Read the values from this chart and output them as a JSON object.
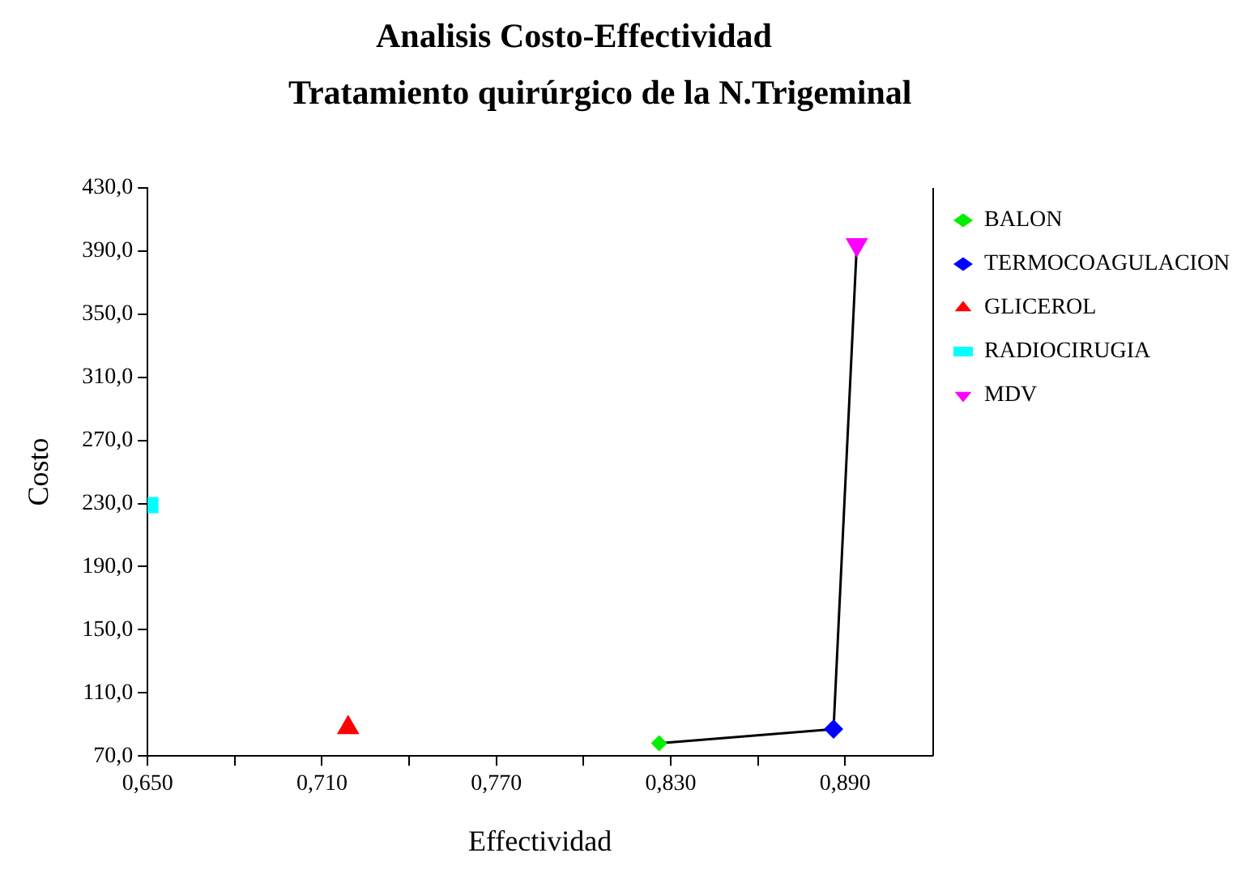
{
  "chart_data": {
    "type": "scatter",
    "title": "Analisis Costo-Effectividad",
    "subtitle": "Tratamiento quirúrgico de la N.Trigeminal",
    "xlabel": "Effectividad",
    "ylabel": "Costo",
    "xlim": [
      0.65,
      0.92
    ],
    "xticks": [
      {
        "value": 0.65,
        "label": "0,650"
      },
      {
        "value": 0.68,
        "label": null
      },
      {
        "value": 0.71,
        "label": "0,710"
      },
      {
        "value": 0.74,
        "label": null
      },
      {
        "value": 0.77,
        "label": "0,770"
      },
      {
        "value": 0.8,
        "label": null
      },
      {
        "value": 0.83,
        "label": "0,830"
      },
      {
        "value": 0.86,
        "label": null
      },
      {
        "value": 0.89,
        "label": "0,890"
      }
    ],
    "ylim": [
      70,
      430
    ],
    "yticks": [
      {
        "value": 70,
        "label": "70,0"
      },
      {
        "value": 110,
        "label": "110,0"
      },
      {
        "value": 150,
        "label": "150,0"
      },
      {
        "value": 190,
        "label": "190,0"
      },
      {
        "value": 230,
        "label": "230,0"
      },
      {
        "value": 270,
        "label": "270,0"
      },
      {
        "value": 310,
        "label": "310,0"
      },
      {
        "value": 350,
        "label": "350,0"
      },
      {
        "value": 390,
        "label": "390,0"
      },
      {
        "value": 430,
        "label": "430,0"
      }
    ],
    "grid": false,
    "legend": "right",
    "series": [
      {
        "type": "line",
        "color": "#000000",
        "marker": "none",
        "x": [
          0.826,
          0.886,
          0.894
        ],
        "values": [
          78,
          87,
          394
        ]
      },
      {
        "name": "BALON",
        "color": "#00ee00",
        "marker": "diamond",
        "x": [
          0.826
        ],
        "values": [
          78
        ]
      },
      {
        "name": "TERMOCOAGULACION",
        "color": "#0000ff",
        "marker": "diamond",
        "x": [
          0.886
        ],
        "values": [
          87
        ]
      },
      {
        "name": "GLICEROL",
        "color": "#ff0000",
        "marker": "triangle",
        "x": [
          0.719
        ],
        "values": [
          88
        ]
      },
      {
        "name": "RADIOCIRUGIA",
        "color": "#00ffff",
        "marker": "square",
        "x": [
          0.651
        ],
        "values": [
          229
        ]
      },
      {
        "name": "MDV",
        "color": "#ff00ff",
        "marker": "triangle-down",
        "x": [
          0.894
        ],
        "values": [
          394
        ]
      }
    ]
  }
}
